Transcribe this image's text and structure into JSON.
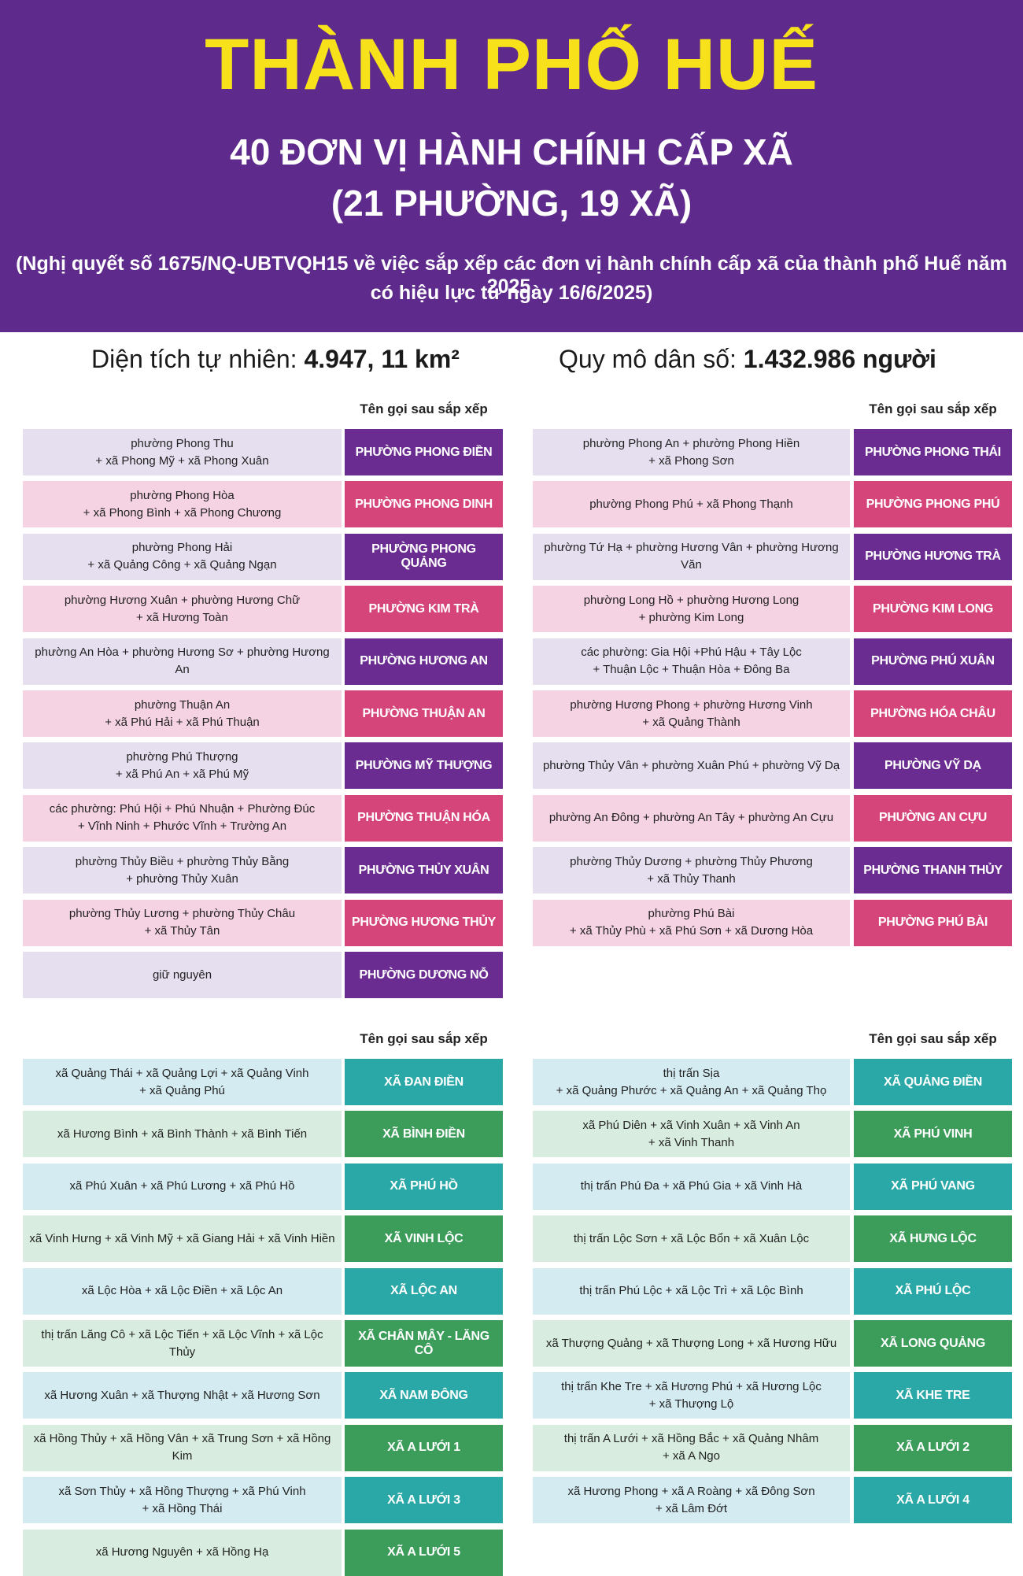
{
  "header": {
    "title": "THÀNH PHỐ HUẾ",
    "subtitle_lines": [
      "40 ĐƠN VỊ HÀNH CHÍNH CẤP XÃ",
      "(21 PHƯỜNG, 19 XÃ)"
    ],
    "note_lines": [
      "(Nghị quyết số 1675/NQ-UBTVQH15 về việc sắp xếp các đơn vị hành chính cấp xã của thành phố Huế năm 2025,",
      "có hiệu lực từ ngày 16/6/2025)"
    ]
  },
  "stats": {
    "area_label": "Diện tích tự nhiên:",
    "area_value": "4.947, 11 km²",
    "population_label": "Quy mô dân số:",
    "population_value": "1.432.986 người"
  },
  "sections": [
    {
      "columns": [
        {
          "heading": "Tên gọi sau sắp xếp",
          "rows": [
            {
              "source": "phường Phong Thu\n+ xã Phong Mỹ + xã Phong Xuân",
              "result": "PHƯỜNG PHONG ĐIỀN"
            },
            {
              "source": "phường Phong Hòa\n+ xã Phong Bình + xã Phong Chương",
              "result": "PHƯỜNG PHONG DINH"
            },
            {
              "source": "phường Phong Hải\n+ xã Quảng Công + xã Quảng Ngạn",
              "result": "PHƯỜNG PHONG QUẢNG"
            },
            {
              "source": "phường Hương Xuân + phường Hương Chữ\n+ xã Hương Toàn",
              "result": "PHƯỜNG KIM TRÀ"
            },
            {
              "source": "phường An Hòa + phường Hương Sơ + phường Hương An",
              "result": "PHƯỜNG HƯƠNG AN"
            },
            {
              "source": "phường Thuận An\n+ xã Phú Hải + xã Phú Thuận",
              "result": "PHƯỜNG THUẬN AN"
            },
            {
              "source": "phường Phú Thượng\n+ xã Phú An + xã Phú Mỹ",
              "result": "PHƯỜNG MỸ THƯỢNG"
            },
            {
              "source": "các phường: Phú Hội + Phú Nhuận + Phường Đúc\n+ Vĩnh Ninh + Phước Vĩnh + Trường An",
              "result": "PHƯỜNG THUẬN HÓA"
            },
            {
              "source": "phường Thủy Biều + phường Thủy Bằng\n+ phường Thủy Xuân",
              "result": "PHƯỜNG THỦY XUÂN"
            },
            {
              "source": "phường Thủy Lương + phường Thủy Châu\n+ xã Thủy Tân",
              "result": "PHƯỜNG HƯƠNG THỦY"
            },
            {
              "source": "giữ nguyên",
              "result": "PHƯỜNG DƯƠNG NỖ"
            }
          ]
        },
        {
          "heading": "Tên gọi sau sắp xếp",
          "rows": [
            {
              "source": "phường Phong An + phường Phong Hiền\n+ xã Phong Sơn",
              "result": "PHƯỜNG PHONG THÁI"
            },
            {
              "source": "phường Phong Phú + xã Phong Thạnh",
              "result": "PHƯỜNG PHONG PHÚ"
            },
            {
              "source": "phường Tứ Hạ + phường Hương Vân + phường Hương Văn",
              "result": "PHƯỜNG HƯƠNG TRÀ"
            },
            {
              "source": "phường Long Hồ + phường Hương Long\n+ phường Kim Long",
              "result": "PHƯỜNG KIM LONG"
            },
            {
              "source": "các phường: Gia Hội +Phú Hậu + Tây Lộc\n+ Thuận Lộc + Thuận Hòa + Đông Ba",
              "result": "PHƯỜNG PHÚ XUÂN"
            },
            {
              "source": "phường Hương Phong + phường Hương Vinh\n+ xã Quảng Thành",
              "result": "PHƯỜNG HÓA CHÂU"
            },
            {
              "source": "phường Thủy Vân + phường Xuân Phú + phường Vỹ Dạ",
              "result": "PHƯỜNG VỸ DẠ"
            },
            {
              "source": "phường An Đông + phường An Tây + phường An Cựu",
              "result": "PHƯỜNG AN CỰU"
            },
            {
              "source": "phường Thủy Dương + phường Thủy Phương\n+ xã Thủy Thanh",
              "result": "PHƯỜNG THANH THỦY"
            },
            {
              "source": "phường Phú Bài\n+ xã Thủy Phù + xã Phú Sơn + xã Dương Hòa",
              "result": "PHƯỜNG PHÚ BÀI"
            }
          ]
        }
      ]
    },
    {
      "columns": [
        {
          "heading": "Tên gọi sau sắp xếp",
          "rows": [
            {
              "source": "xã Quảng Thái + xã Quảng Lợi + xã Quảng Vinh\n+ xã Quảng Phú",
              "result": "XÃ ĐAN ĐIỀN"
            },
            {
              "source": "xã Hương Bình + xã Bình Thành + xã Bình Tiến",
              "result": "XÃ BÌNH ĐIỀN"
            },
            {
              "source": "xã Phú Xuân + xã Phú Lương + xã Phú Hồ",
              "result": "XÃ PHÚ HỒ"
            },
            {
              "source": "xã Vinh Hưng + xã Vinh Mỹ + xã Giang Hải + xã Vinh Hiền",
              "result": "XÃ VINH LỘC"
            },
            {
              "source": "xã Lộc Hòa + xã Lộc Điền + xã Lộc An",
              "result": "XÃ LỘC AN"
            },
            {
              "source": "thị trấn Lăng Cô + xã Lộc Tiến + xã Lộc Vĩnh + xã Lộc Thủy",
              "result": "XÃ CHÂN MÂY - LĂNG CÔ"
            },
            {
              "source": "xã Hương Xuân + xã Thượng Nhật + xã Hương Sơn",
              "result": "XÃ NAM ĐÔNG"
            },
            {
              "source": "xã Hồng Thủy + xã Hồng Vân + xã Trung Sơn + xã Hồng Kim",
              "result": "XÃ A LƯỚI 1"
            },
            {
              "source": "xã Sơn Thủy + xã Hồng Thượng + xã Phú Vinh\n+ xã Hồng Thái",
              "result": "XÃ A LƯỚI 3"
            },
            {
              "source": "xã Hương Nguyên + xã Hồng Hạ",
              "result": "XÃ A LƯỚI 5"
            }
          ]
        },
        {
          "heading": "Tên gọi sau sắp xếp",
          "rows": [
            {
              "source": "thị trấn Sịa\n+ xã Quảng Phước + xã Quảng An + xã Quảng Thọ",
              "result": "XÃ QUẢNG ĐIỀN"
            },
            {
              "source": "xã Phú Diên + xã Vinh Xuân + xã Vinh An\n+ xã Vinh Thanh",
              "result": "XÃ PHÚ VINH"
            },
            {
              "source": "thị trấn Phú Đa + xã Phú Gia + xã Vinh Hà",
              "result": "XÃ PHÚ VANG"
            },
            {
              "source": "thị trấn Lộc Sơn + xã Lộc Bổn + xã Xuân Lộc",
              "result": "XÃ HƯNG LỘC"
            },
            {
              "source": "thị trấn Phú Lộc + xã Lộc Trì + xã Lộc Bình",
              "result": "XÃ PHÚ LỘC"
            },
            {
              "source": "xã Thượng Quảng + xã Thượng Long + xã Hương Hữu",
              "result": "XÃ LONG QUẢNG"
            },
            {
              "source": "thị trấn Khe Tre + xã Hương Phú + xã Hương Lộc\n+ xã Thượng Lộ",
              "result": "XÃ KHE TRE"
            },
            {
              "source": "thị trấn A Lưới + xã Hồng Bắc + xã Quảng Nhâm\n+ xã A Ngo",
              "result": "XÃ A LƯỚI 2"
            },
            {
              "source": "xã Hương Phong + xã A Roàng + xã Đông Sơn\n+ xã Lâm Đớt",
              "result": "XÃ A LƯỚI 4"
            }
          ]
        }
      ]
    }
  ]
}
